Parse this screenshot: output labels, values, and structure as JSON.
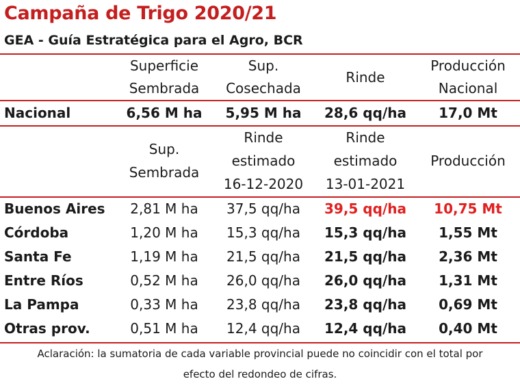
{
  "title": "Campaña de Trigo 2020/21",
  "subtitle": "GEA - Guía Estratégica para el Agro, BCR",
  "national_header": {
    "sown": "Superficie\nSembrada",
    "harvested": "Sup.\nCosechada",
    "yield": "Rinde",
    "production": "Producción\nNacional"
  },
  "national_row": {
    "region": "Nacional",
    "sown": "6,56 M ha",
    "harvested": "5,95 M ha",
    "yield": "28,6 qq/ha",
    "production": "17,0 Mt"
  },
  "province_header": {
    "sown": "Sup.\nSembrada",
    "yield_prev": "Rinde\nestimado\n16-12-2020",
    "yield_curr": "Rinde\nestimado\n13-01-2021",
    "production": "Producción"
  },
  "province_rows": [
    {
      "region": "Buenos Aires",
      "sown": "2,81 M ha",
      "yield_prev": "37,5 qq/ha",
      "yield_curr": "39,5 qq/ha",
      "production": "10,75 Mt",
      "highlight": true
    },
    {
      "region": "Córdoba",
      "sown": "1,20 M ha",
      "yield_prev": "15,3 qq/ha",
      "yield_curr": "15,3 qq/ha",
      "production": "1,55 Mt",
      "highlight": false
    },
    {
      "region": "Santa Fe",
      "sown": "1,19 M ha",
      "yield_prev": "21,5 qq/ha",
      "yield_curr": "21,5 qq/ha",
      "production": "2,36 Mt",
      "highlight": false
    },
    {
      "region": "Entre Ríos",
      "sown": "0,52 M ha",
      "yield_prev": "26,0 qq/ha",
      "yield_curr": "26,0 qq/ha",
      "production": "1,31 Mt",
      "highlight": false
    },
    {
      "region": "La Pampa",
      "sown": "0,33 M ha",
      "yield_prev": "23,8 qq/ha",
      "yield_curr": "23,8 qq/ha",
      "production": "0,69 Mt",
      "highlight": false
    },
    {
      "region": "Otras prov.",
      "sown": "0,51 M ha",
      "yield_prev": "12,4 qq/ha",
      "yield_curr": "12,4 qq/ha",
      "production": "0,40 Mt",
      "highlight": false
    }
  ],
  "note": "Aclaración: la sumatoria de cada variable provincial puede no coincidir con el total por\nefecto del redondeo de cifras.",
  "colors": {
    "accent": "#c41e1e",
    "highlight": "#e02020"
  }
}
